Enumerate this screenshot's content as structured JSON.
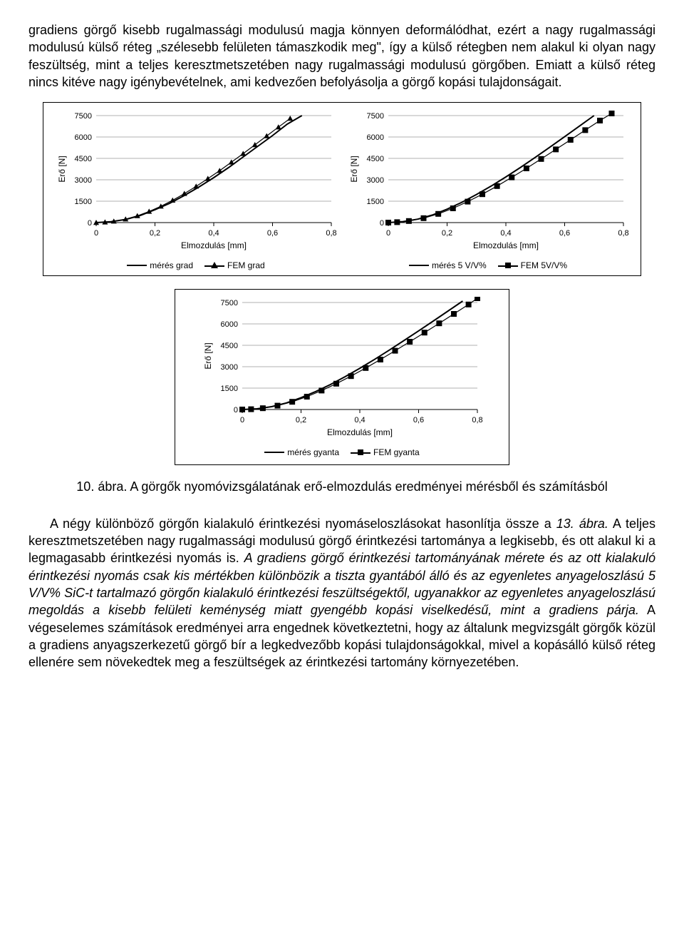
{
  "para1": "gradiens görgő kisebb rugalmassági modulusú magja könnyen deformálódhat, ezért a nagy rugalmassági modulusú külső réteg „szélesebb felületen támaszkodik meg\", így a külső rétegben nem alakul ki olyan nagy feszültség, mint a teljes keresztmetszetében nagy rugalmassági modulusú görgőben. Emiatt a külső réteg nincs kitéve nagy igénybevételnek, ami kedvezően befolyásolja a görgő kopási tulajdonságait.",
  "caption_prefix": "10. ábra.",
  "caption_rest": " A görgők nyomóvizsgálatának erő-elmozdulás eredményei mérésből és számításból",
  "para2a": "A négy különböző görgőn kialakuló érintkezési nyomáseloszlásokat hasonlítja össze a ",
  "para2b": "13. ábra.",
  "para2c": " A teljes keresztmetszetében nagy rugalmassági modulusú görgő érintkezési tartománya a legkisebb, és ott alakul ki a legmagasabb érintkezési nyomás is. ",
  "para2d": "A gradiens görgő érintkezési tartományának mérete és az ott kialakuló érintkezési nyomás csak kis mértékben különbözik a tiszta gyantából álló és az egyenletes anyageloszlású 5 V/V% SiC-t tartalmazó görgőn kialakuló érintkezési feszültségektől, ugyanakkor az egyenletes anyageloszlású megoldás a kisebb felületi keménység miatt gyengébb kopási viselkedésű, mint a gradiens párja.",
  "para2e": " A végeselemes számítások eredményei arra engednek következtetni, hogy az általunk megvizsgált görgők közül a gradiens anyagszerkezetű görgő bír a legkedvezőbb kopási tulajdonságokkal, mivel a kopásálló külső réteg ellenére sem növekedtek meg a feszültségek az érintkezési tartomány környezetében.",
  "chart_defaults": {
    "type": "scatter+line",
    "background_color": "#ffffff",
    "grid_color": "#b0b0b0",
    "axis_color": "#000000",
    "text_color": "#000000",
    "xlabel": "Elmozdulás  [mm]",
    "ylabel": "Erő [N]",
    "xlim": [
      0,
      0.8
    ],
    "ylim": [
      0,
      7500
    ],
    "xticks": [
      0,
      0.2,
      0.4,
      0.6,
      0.8
    ],
    "yticks": [
      0,
      1500,
      3000,
      4500,
      6000,
      7500
    ],
    "label_fontsize": 12,
    "tick_fontsize": 11,
    "legend_fontsize": 12,
    "line_color": "#000000",
    "marker_color": "#000000",
    "line_width": 2,
    "marker_size": 8
  },
  "chart_left": {
    "line_series": {
      "name": "mérés grad",
      "points": [
        [
          0,
          0
        ],
        [
          0.05,
          60
        ],
        [
          0.1,
          220
        ],
        [
          0.15,
          500
        ],
        [
          0.2,
          900
        ],
        [
          0.25,
          1350
        ],
        [
          0.3,
          1900
        ],
        [
          0.35,
          2500
        ],
        [
          0.4,
          3150
        ],
        [
          0.45,
          3850
        ],
        [
          0.5,
          4600
        ],
        [
          0.55,
          5350
        ],
        [
          0.6,
          6100
        ],
        [
          0.65,
          6900
        ],
        [
          0.7,
          7500
        ]
      ]
    },
    "marker_series": {
      "name": "FEM grad",
      "marker": "triangle",
      "points": [
        [
          0.0,
          0
        ],
        [
          0.03,
          30
        ],
        [
          0.06,
          90
        ],
        [
          0.1,
          240
        ],
        [
          0.14,
          470
        ],
        [
          0.18,
          780
        ],
        [
          0.22,
          1140
        ],
        [
          0.26,
          1560
        ],
        [
          0.3,
          2030
        ],
        [
          0.34,
          2540
        ],
        [
          0.38,
          3080
        ],
        [
          0.42,
          3640
        ],
        [
          0.46,
          4230
        ],
        [
          0.5,
          4830
        ],
        [
          0.54,
          5450
        ],
        [
          0.58,
          6070
        ],
        [
          0.62,
          6690
        ],
        [
          0.66,
          7300
        ]
      ]
    }
  },
  "chart_right": {
    "line_series": {
      "name": "mérés 5 V/V%",
      "points": [
        [
          0,
          0
        ],
        [
          0.05,
          70
        ],
        [
          0.1,
          240
        ],
        [
          0.15,
          530
        ],
        [
          0.2,
          940
        ],
        [
          0.25,
          1420
        ],
        [
          0.3,
          1970
        ],
        [
          0.35,
          2560
        ],
        [
          0.4,
          3200
        ],
        [
          0.45,
          3870
        ],
        [
          0.5,
          4570
        ],
        [
          0.55,
          5290
        ],
        [
          0.6,
          6020
        ],
        [
          0.65,
          6760
        ],
        [
          0.7,
          7500
        ]
      ]
    },
    "marker_series": {
      "name": "FEM 5V/V%",
      "marker": "square",
      "points": [
        [
          0.0,
          0
        ],
        [
          0.03,
          30
        ],
        [
          0.07,
          110
        ],
        [
          0.12,
          310
        ],
        [
          0.17,
          610
        ],
        [
          0.22,
          1000
        ],
        [
          0.27,
          1470
        ],
        [
          0.32,
          1990
        ],
        [
          0.37,
          2560
        ],
        [
          0.42,
          3170
        ],
        [
          0.47,
          3800
        ],
        [
          0.52,
          4460
        ],
        [
          0.57,
          5130
        ],
        [
          0.62,
          5800
        ],
        [
          0.67,
          6480
        ],
        [
          0.72,
          7150
        ],
        [
          0.76,
          7650
        ]
      ]
    }
  },
  "chart_mid": {
    "line_series": {
      "name": "mérés gyanta",
      "points": [
        [
          0,
          0
        ],
        [
          0.05,
          50
        ],
        [
          0.1,
          200
        ],
        [
          0.15,
          460
        ],
        [
          0.2,
          830
        ],
        [
          0.25,
          1260
        ],
        [
          0.3,
          1750
        ],
        [
          0.35,
          2300
        ],
        [
          0.4,
          2890
        ],
        [
          0.45,
          3510
        ],
        [
          0.5,
          4160
        ],
        [
          0.55,
          4830
        ],
        [
          0.6,
          5510
        ],
        [
          0.65,
          6200
        ],
        [
          0.7,
          6900
        ],
        [
          0.75,
          7600
        ]
      ]
    },
    "marker_series": {
      "name": "FEM gyanta",
      "marker": "square",
      "points": [
        [
          0.0,
          0
        ],
        [
          0.03,
          20
        ],
        [
          0.07,
          90
        ],
        [
          0.12,
          270
        ],
        [
          0.17,
          540
        ],
        [
          0.22,
          900
        ],
        [
          0.27,
          1330
        ],
        [
          0.32,
          1810
        ],
        [
          0.37,
          2340
        ],
        [
          0.42,
          2910
        ],
        [
          0.47,
          3500
        ],
        [
          0.52,
          4120
        ],
        [
          0.57,
          4750
        ],
        [
          0.62,
          5390
        ],
        [
          0.67,
          6040
        ],
        [
          0.72,
          6700
        ],
        [
          0.77,
          7360
        ],
        [
          0.8,
          7800
        ]
      ]
    }
  },
  "xtick_fmt": "hu-comma"
}
